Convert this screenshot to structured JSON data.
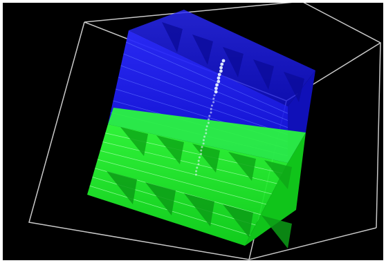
{
  "scene": {
    "background_color": "#000000",
    "upper_block_color": "#1a1aff",
    "lower_block_color": "#19ff2a",
    "bounding_box_color": "#c8c8c8",
    "particle_column_color": "#e6f0ff",
    "upper_block_rows": 7,
    "lower_block_rows": 7,
    "block_columns": 5
  }
}
